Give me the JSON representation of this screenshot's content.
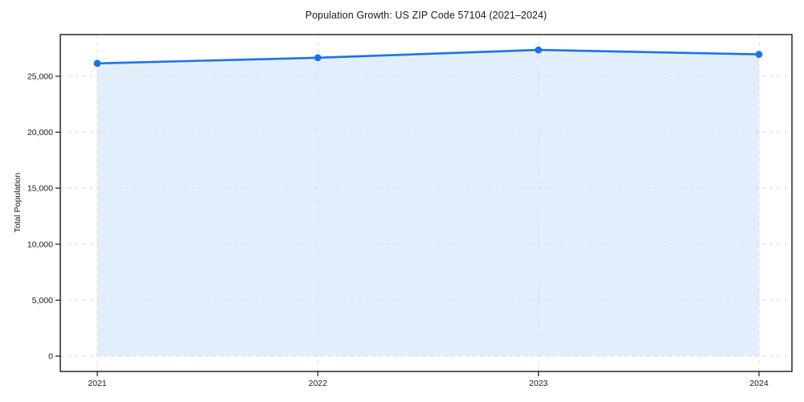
{
  "figure": {
    "background": "#ffffff"
  },
  "chart_data": {
    "type": "area",
    "title": "Population Growth: US ZIP Code 57104 (2021–2024)",
    "categories": [
      "2021",
      "2022",
      "2023",
      "2024"
    ],
    "series": [
      {
        "name": "Total Population",
        "values": [
          26150,
          26650,
          27350,
          26950
        ],
        "line_color": "#1a73e8",
        "fill_color": "rgba(26,115,232,0.12)",
        "marker": "circle"
      }
    ],
    "xlabel": "",
    "ylabel": "Total Population",
    "ylim": [
      -1368,
      28718
    ],
    "yticks": [
      0,
      5000,
      10000,
      15000,
      20000,
      25000
    ],
    "ytick_labels": [
      "0",
      "5,000",
      "10,000",
      "15,000",
      "20,000",
      "25,000"
    ],
    "grid": true,
    "grid_style": "dashed",
    "legend_position": "none",
    "colors": {
      "grid": "#d9d9d9",
      "spine": "#1a1a1a",
      "tick_text": "#1a1a1a",
      "background": "#ffffff"
    }
  }
}
